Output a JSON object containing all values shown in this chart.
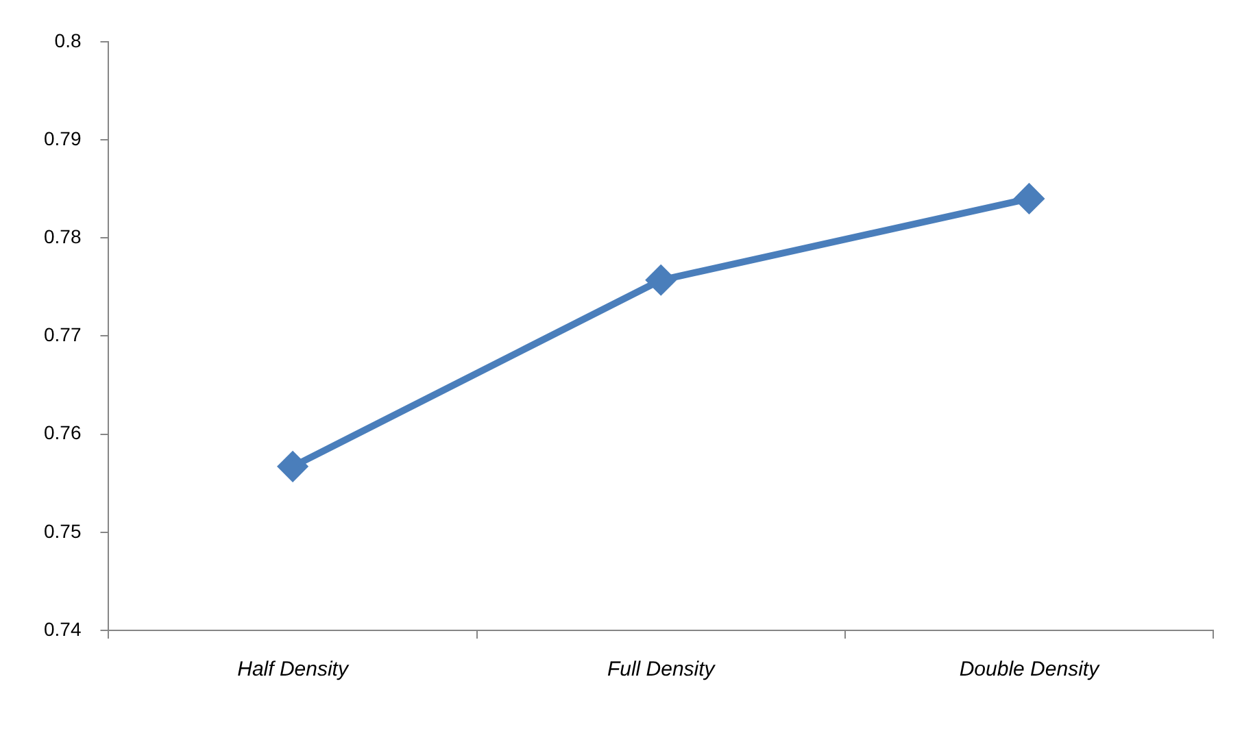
{
  "chart_data": {
    "type": "line",
    "categories": [
      "Half Density",
      "Full Density",
      "Double Density"
    ],
    "series": [
      {
        "color": "#4a7ebb",
        "values": [
          0.7567,
          0.7757,
          0.784
        ]
      }
    ],
    "ylim": [
      0.74,
      0.8
    ],
    "yticks": [
      0.74,
      0.75,
      0.76,
      0.77,
      0.78,
      0.79,
      0.8
    ],
    "grid": false,
    "legend": false,
    "marker": "diamond",
    "line_style": "solid"
  }
}
